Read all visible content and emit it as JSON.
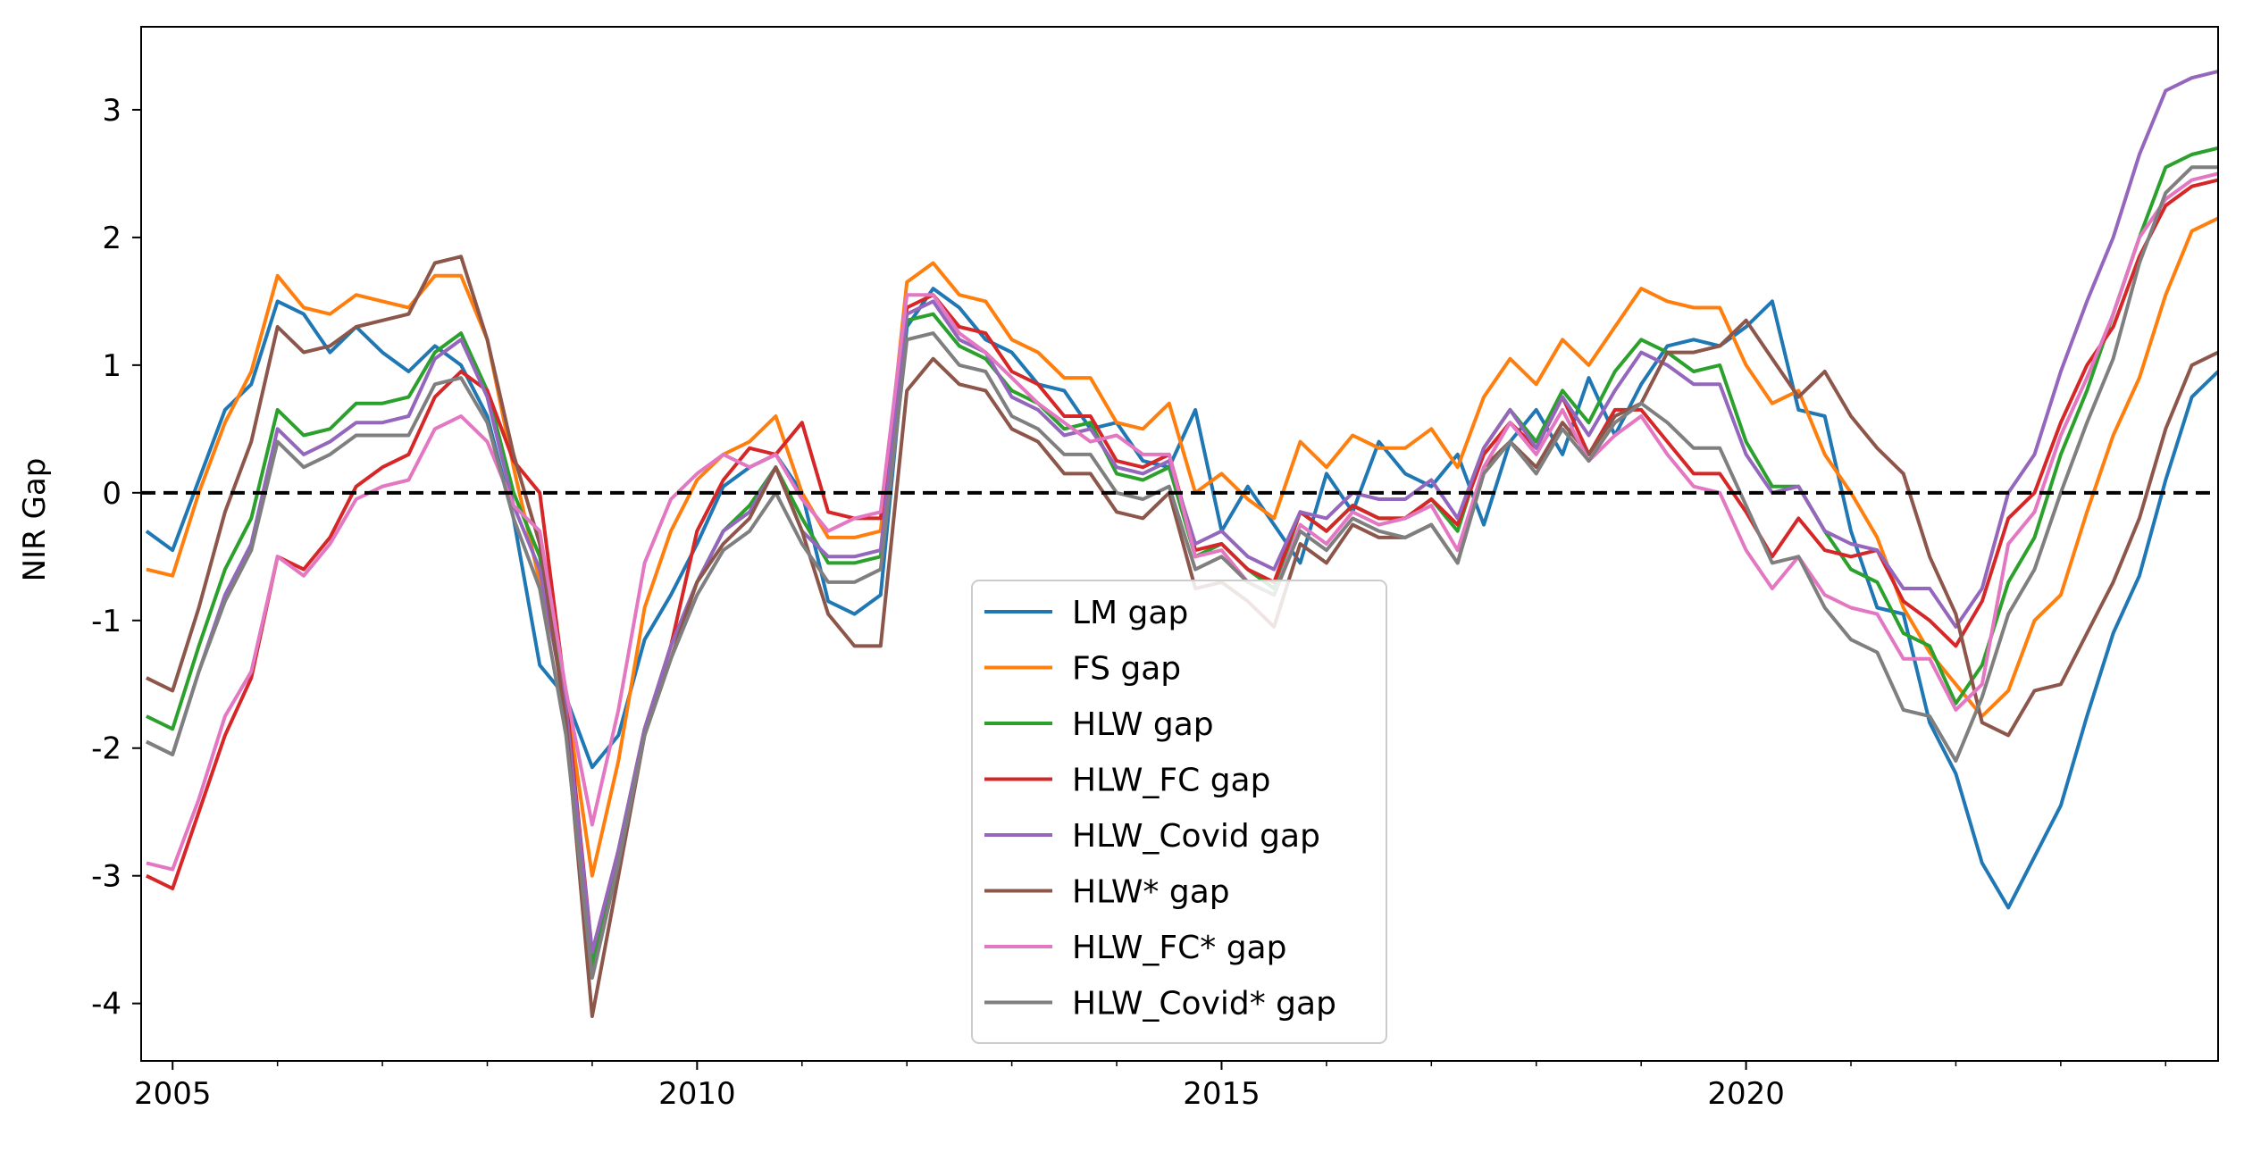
{
  "chart_data": {
    "type": "line",
    "title": "",
    "xlabel": "",
    "ylabel": "NIR Gap",
    "xlim": [
      2004.7,
      2024.5
    ],
    "ylim": [
      -4.45,
      3.65
    ],
    "xticks": [
      2005,
      2010,
      2015,
      2020
    ],
    "xtick_labels": [
      "2005",
      "2010",
      "2015",
      "2020"
    ],
    "yticks": [
      -4,
      -3,
      -2,
      -1,
      0,
      1,
      2,
      3
    ],
    "ytick_labels": [
      "-4",
      "-3",
      "-2",
      "-1",
      "0",
      "1",
      "2",
      "3"
    ],
    "minor_xticks": [
      2006,
      2007,
      2008,
      2009,
      2011,
      2012,
      2013,
      2014,
      2016,
      2017,
      2018,
      2019,
      2021,
      2022,
      2023,
      2024
    ],
    "reference_line": {
      "y": 0,
      "style": "dashed",
      "color": "#000000"
    },
    "grid": false,
    "legend_position": "lower-center",
    "x": [
      2004.75,
      2005.0,
      2005.25,
      2005.5,
      2005.75,
      2006.0,
      2006.25,
      2006.5,
      2006.75,
      2007.0,
      2007.25,
      2007.5,
      2007.75,
      2008.0,
      2008.25,
      2008.5,
      2008.75,
      2009.0,
      2009.25,
      2009.5,
      2009.75,
      2010.0,
      2010.25,
      2010.5,
      2010.75,
      2011.0,
      2011.25,
      2011.5,
      2011.75,
      2012.0,
      2012.25,
      2012.5,
      2012.75,
      2013.0,
      2013.25,
      2013.5,
      2013.75,
      2014.0,
      2014.25,
      2014.5,
      2014.75,
      2015.0,
      2015.25,
      2015.5,
      2015.75,
      2016.0,
      2016.25,
      2016.5,
      2016.75,
      2017.0,
      2017.25,
      2017.5,
      2017.75,
      2018.0,
      2018.25,
      2018.5,
      2018.75,
      2019.0,
      2019.25,
      2019.5,
      2019.75,
      2020.0,
      2020.25,
      2020.5,
      2020.75,
      2021.0,
      2021.25,
      2021.5,
      2021.75,
      2022.0,
      2022.25,
      2022.5,
      2022.75,
      2023.0,
      2023.25,
      2023.5,
      2023.75,
      2024.0,
      2024.25,
      2024.5
    ],
    "series": [
      {
        "name": "LM gap",
        "color": "#1f77b4",
        "values": [
          -0.3,
          -0.45,
          0.1,
          0.65,
          0.85,
          1.5,
          1.4,
          1.1,
          1.3,
          1.1,
          0.95,
          1.15,
          1.0,
          0.6,
          -0.2,
          -1.35,
          -1.6,
          -2.15,
          -1.9,
          -1.15,
          -0.8,
          -0.4,
          0.05,
          0.2,
          0.3,
          0.0,
          -0.85,
          -0.95,
          -0.8,
          1.3,
          1.6,
          1.45,
          1.2,
          1.1,
          0.85,
          0.8,
          0.5,
          0.55,
          0.25,
          0.2,
          0.65,
          -0.3,
          0.05,
          -0.25,
          -0.55,
          0.15,
          -0.15,
          0.4,
          0.15,
          0.05,
          0.3,
          -0.25,
          0.4,
          0.65,
          0.3,
          0.9,
          0.45,
          0.85,
          1.15,
          1.2,
          1.15,
          1.3,
          1.5,
          0.65,
          0.6,
          -0.3,
          -0.9,
          -0.95,
          -1.8,
          -2.2,
          -2.9,
          -3.25,
          -2.85,
          -2.45,
          -1.75,
          -1.1,
          -0.65,
          0.1,
          0.75,
          0.95
        ]
      },
      {
        "name": "FS gap",
        "color": "#ff7f0e",
        "values": [
          -0.6,
          -0.65,
          0.0,
          0.55,
          0.95,
          1.7,
          1.45,
          1.4,
          1.55,
          1.5,
          1.45,
          1.7,
          1.7,
          1.2,
          0.2,
          -0.7,
          -1.6,
          -3.0,
          -2.1,
          -0.9,
          -0.3,
          0.1,
          0.3,
          0.4,
          0.6,
          0.0,
          -0.35,
          -0.35,
          -0.3,
          1.65,
          1.8,
          1.55,
          1.5,
          1.2,
          1.1,
          0.9,
          0.9,
          0.55,
          0.5,
          0.7,
          0.0,
          0.15,
          -0.05,
          -0.2,
          0.4,
          0.2,
          0.45,
          0.35,
          0.35,
          0.5,
          0.2,
          0.75,
          1.05,
          0.85,
          1.2,
          1.0,
          1.3,
          1.6,
          1.5,
          1.45,
          1.45,
          1.0,
          0.7,
          0.8,
          0.3,
          0.0,
          -0.35,
          -0.9,
          -1.25,
          -1.5,
          -1.75,
          -1.55,
          -1.0,
          -0.8,
          -0.15,
          0.45,
          0.9,
          1.55,
          2.05,
          2.15
        ]
      },
      {
        "name": "HLW gap",
        "color": "#2ca02c",
        "values": [
          -1.75,
          -1.85,
          -1.2,
          -0.6,
          -0.2,
          0.65,
          0.45,
          0.5,
          0.7,
          0.7,
          0.75,
          1.1,
          1.25,
          0.8,
          0.0,
          -0.5,
          -1.6,
          -3.7,
          -2.8,
          -1.85,
          -1.2,
          -0.7,
          -0.3,
          -0.1,
          0.2,
          -0.2,
          -0.55,
          -0.55,
          -0.5,
          1.35,
          1.4,
          1.15,
          1.05,
          0.8,
          0.7,
          0.5,
          0.55,
          0.15,
          0.1,
          0.2,
          -0.5,
          -0.4,
          -0.6,
          -0.75,
          -0.15,
          -0.3,
          -0.1,
          -0.2,
          -0.2,
          -0.05,
          -0.3,
          0.35,
          0.65,
          0.4,
          0.8,
          0.55,
          0.95,
          1.2,
          1.1,
          0.95,
          1.0,
          0.4,
          0.05,
          0.05,
          -0.3,
          -0.6,
          -0.7,
          -1.1,
          -1.2,
          -1.65,
          -1.35,
          -0.7,
          -0.35,
          0.3,
          0.8,
          1.4,
          2.0,
          2.55,
          2.65,
          2.7
        ]
      },
      {
        "name": "HLW_FC gap",
        "color": "#d62728",
        "values": [
          -3.0,
          -3.1,
          -2.5,
          -1.9,
          -1.45,
          -0.5,
          -0.6,
          -0.35,
          0.05,
          0.2,
          0.3,
          0.75,
          0.95,
          0.8,
          0.25,
          0.0,
          -1.6,
          -3.6,
          -2.8,
          -1.85,
          -1.2,
          -0.3,
          0.1,
          0.35,
          0.3,
          0.55,
          -0.15,
          -0.2,
          -0.2,
          1.45,
          1.55,
          1.3,
          1.25,
          0.95,
          0.85,
          0.6,
          0.6,
          0.25,
          0.2,
          0.3,
          -0.45,
          -0.4,
          -0.6,
          -0.7,
          -0.15,
          -0.3,
          -0.1,
          -0.2,
          -0.2,
          -0.05,
          -0.25,
          0.3,
          0.55,
          0.35,
          0.75,
          0.3,
          0.65,
          0.65,
          0.4,
          0.15,
          0.15,
          -0.15,
          -0.5,
          -0.2,
          -0.45,
          -0.5,
          -0.45,
          -0.85,
          -1.0,
          -1.2,
          -0.85,
          -0.2,
          0.0,
          0.55,
          1.0,
          1.3,
          1.85,
          2.25,
          2.4,
          2.45
        ]
      },
      {
        "name": "HLW_Covid gap",
        "color": "#9467bd",
        "values": [
          -1.95,
          -2.05,
          -1.4,
          -0.8,
          -0.4,
          0.5,
          0.3,
          0.4,
          0.55,
          0.55,
          0.6,
          1.05,
          1.2,
          0.75,
          -0.1,
          -0.6,
          -1.7,
          -3.6,
          -2.8,
          -1.85,
          -1.2,
          -0.7,
          -0.3,
          -0.15,
          0.2,
          -0.3,
          -0.5,
          -0.5,
          -0.45,
          1.4,
          1.5,
          1.2,
          1.1,
          0.75,
          0.65,
          0.45,
          0.5,
          0.2,
          0.15,
          0.25,
          -0.4,
          -0.3,
          -0.5,
          -0.6,
          -0.15,
          -0.2,
          0.0,
          -0.05,
          -0.05,
          0.1,
          -0.2,
          0.35,
          0.65,
          0.35,
          0.75,
          0.45,
          0.8,
          1.1,
          1.0,
          0.85,
          0.85,
          0.3,
          0.0,
          0.05,
          -0.3,
          -0.4,
          -0.45,
          -0.75,
          -0.75,
          -1.05,
          -0.75,
          0.0,
          0.3,
          0.95,
          1.5,
          2.0,
          2.65,
          3.15,
          3.25,
          3.3
        ]
      },
      {
        "name": "HLW* gap",
        "color": "#8c564b",
        "values": [
          -1.45,
          -1.55,
          -0.9,
          -0.15,
          0.4,
          1.3,
          1.1,
          1.15,
          1.3,
          1.35,
          1.4,
          1.8,
          1.85,
          1.2,
          0.3,
          -0.4,
          -1.8,
          -4.1,
          -3.0,
          -1.9,
          -1.3,
          -0.7,
          -0.4,
          -0.2,
          0.2,
          -0.3,
          -0.95,
          -1.2,
          -1.2,
          0.8,
          1.05,
          0.85,
          0.8,
          0.5,
          0.4,
          0.15,
          0.15,
          -0.15,
          -0.2,
          0.0,
          -0.75,
          -0.7,
          -0.85,
          -1.05,
          -0.4,
          -0.55,
          -0.25,
          -0.35,
          -0.35,
          -0.25,
          -0.55,
          0.2,
          0.4,
          0.2,
          0.55,
          0.3,
          0.6,
          0.7,
          1.1,
          1.1,
          1.15,
          1.35,
          1.05,
          0.75,
          0.95,
          0.6,
          0.35,
          0.15,
          -0.5,
          -0.95,
          -1.8,
          -1.9,
          -1.55,
          -1.5,
          -1.1,
          -0.7,
          -0.2,
          0.5,
          1.0,
          1.1
        ]
      },
      {
        "name": "HLW_FC* gap",
        "color": "#e377c2",
        "values": [
          -2.9,
          -2.95,
          -2.4,
          -1.75,
          -1.4,
          -0.5,
          -0.65,
          -0.4,
          -0.05,
          0.05,
          0.1,
          0.5,
          0.6,
          0.4,
          -0.1,
          -0.3,
          -1.55,
          -2.6,
          -1.7,
          -0.55,
          -0.05,
          0.15,
          0.3,
          0.2,
          0.3,
          -0.05,
          -0.3,
          -0.2,
          -0.15,
          1.55,
          1.55,
          1.25,
          1.1,
          0.9,
          0.7,
          0.55,
          0.4,
          0.45,
          0.3,
          0.3,
          -0.5,
          -0.45,
          -0.7,
          -0.8,
          -0.25,
          -0.4,
          -0.15,
          -0.25,
          -0.2,
          -0.1,
          -0.45,
          0.2,
          0.55,
          0.3,
          0.65,
          0.25,
          0.45,
          0.6,
          0.3,
          0.05,
          0.0,
          -0.45,
          -0.75,
          -0.5,
          -0.8,
          -0.9,
          -0.95,
          -1.3,
          -1.3,
          -1.7,
          -1.5,
          -0.4,
          -0.15,
          0.45,
          0.9,
          1.4,
          2.0,
          2.3,
          2.45,
          2.5
        ]
      },
      {
        "name": "HLW_Covid* gap",
        "color": "#7f7f7f",
        "values": [
          -1.95,
          -2.05,
          -1.4,
          -0.85,
          -0.45,
          0.4,
          0.2,
          0.3,
          0.45,
          0.45,
          0.45,
          0.85,
          0.9,
          0.55,
          -0.2,
          -0.75,
          -1.9,
          -3.8,
          -2.9,
          -1.9,
          -1.3,
          -0.8,
          -0.45,
          -0.3,
          0.0,
          -0.4,
          -0.7,
          -0.7,
          -0.6,
          1.2,
          1.25,
          1.0,
          0.95,
          0.6,
          0.5,
          0.3,
          0.3,
          0.0,
          -0.05,
          0.05,
          -0.6,
          -0.5,
          -0.7,
          -0.8,
          -0.3,
          -0.45,
          -0.2,
          -0.3,
          -0.35,
          -0.25,
          -0.55,
          0.15,
          0.4,
          0.15,
          0.5,
          0.25,
          0.55,
          0.7,
          0.55,
          0.35,
          0.35,
          -0.1,
          -0.55,
          -0.5,
          -0.9,
          -1.15,
          -1.25,
          -1.7,
          -1.75,
          -2.1,
          -1.6,
          -0.95,
          -0.6,
          0.0,
          0.55,
          1.05,
          1.8,
          2.35,
          2.55,
          2.55
        ]
      }
    ]
  }
}
